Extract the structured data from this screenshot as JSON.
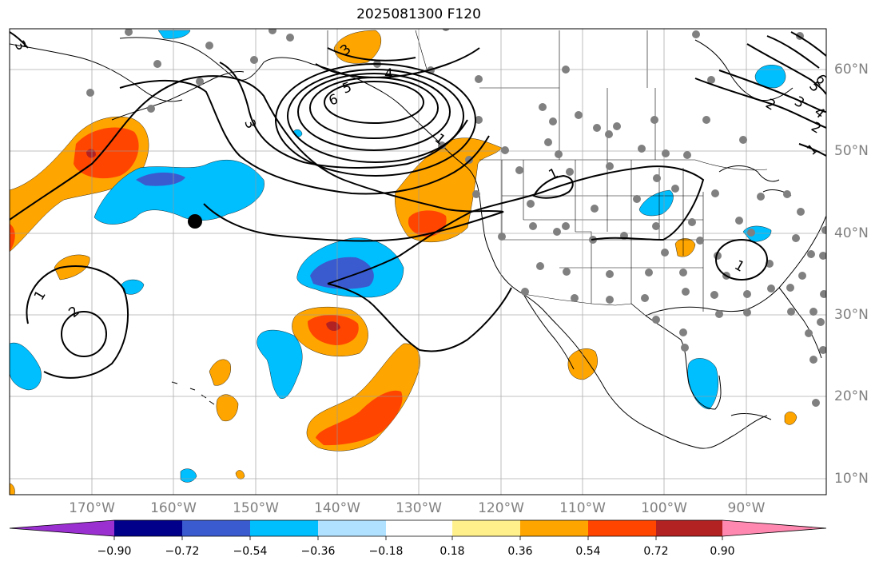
{
  "title": "2025081300 F120",
  "map": {
    "lat_labels": [
      "60°N",
      "50°N",
      "40°N",
      "30°N",
      "20°N",
      "10°N"
    ],
    "lon_labels": [
      "170°W",
      "160°W",
      "150°W",
      "140°W",
      "130°W",
      "120°W",
      "110°W",
      "100°W",
      "90°W"
    ],
    "contour_labels": [
      "3",
      "3",
      "4",
      "5",
      "6",
      "1",
      "1",
      "2",
      "2",
      "3",
      "4",
      "5",
      "6",
      "1",
      "1",
      "2",
      "1",
      "3"
    ],
    "fill_colors": {
      "purple": "#9b30d0",
      "navy": "#00008b",
      "royal": "#3a5bd0",
      "blue": "#00bfff",
      "lightblue": "#b0e2ff",
      "white": "#ffffff",
      "yellow": "#fff08c",
      "orange": "#ffa500",
      "red": "#ff4500",
      "darkred": "#b22222",
      "pink": "#ff88b0"
    }
  },
  "colorbar": {
    "tick_labels": [
      "−0.90",
      "−0.72",
      "−0.54",
      "−0.36",
      "−0.18",
      "0.18",
      "0.36",
      "0.54",
      "0.72",
      "0.90"
    ],
    "colors": [
      "#9b30d0",
      "#00008b",
      "#3a5bd0",
      "#00bfff",
      "#b0e2ff",
      "#ffffff",
      "#fff08c",
      "#ffa500",
      "#ff4500",
      "#b22222",
      "#ff88b0"
    ]
  }
}
